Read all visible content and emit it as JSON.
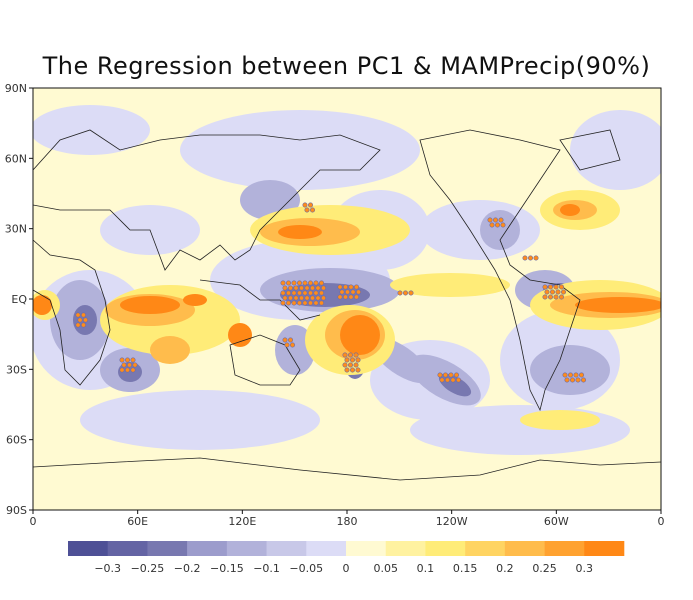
{
  "title": "The Regression between PC1 & MAMPrecip(90%)",
  "lat_ticks": [
    "90N",
    "60N",
    "30N",
    "EQ",
    "30S",
    "60S",
    "90S"
  ],
  "lon_ticks": [
    "0",
    "60E",
    "120E",
    "180",
    "120W",
    "60W",
    "0"
  ],
  "colorbar": {
    "labels": [
      "−0.3",
      "−0.25",
      "−0.2",
      "−0.15",
      "−0.1",
      "−0.05",
      "0",
      "0.05",
      "0.1",
      "0.15",
      "0.2",
      "0.25",
      "0.3"
    ],
    "colors": [
      "#4e5096",
      "#6464a4",
      "#7878b0",
      "#9c9ccc",
      "#b2b2da",
      "#c8c8e8",
      "#dcdcf6",
      "#fffad2",
      "#fff2a0",
      "#ffec78",
      "#ffd462",
      "#ffbc4c",
      "#ffa230",
      "#ff8816"
    ]
  },
  "background_color": "#fffad2",
  "significance_marker_color": "#ff8c1a"
}
